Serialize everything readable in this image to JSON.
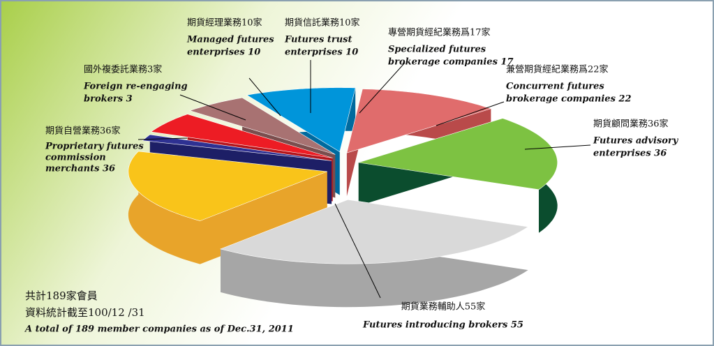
{
  "chart_data": {
    "type": "pie",
    "values": [
      55,
      36,
      3,
      10,
      10,
      17,
      22,
      36
    ],
    "colors": [
      "#d9d9d9",
      "#f9c41a",
      "#2e3192",
      "#ed1c24",
      "#a87272",
      "#0095da",
      "#e06c6c",
      "#7dc242"
    ],
    "side_colors": [
      "#a6a6a6",
      "#e8a42a",
      "#1d1f66",
      "#b5151b",
      "#7a4e4e",
      "#006a9e",
      "#b94a4a",
      "#0b4d2e"
    ],
    "labels": [
      [
        "期貨業務輔助人55家",
        "Futures introducing brokers 55"
      ],
      [
        "期貨自營業務36家",
        "Proprietary futures",
        "commission",
        "merchants 36"
      ],
      [
        "國外複委託業務3家",
        "Foreign re-engaging",
        "brokers 3"
      ],
      [
        "期貨經理業務10家",
        "Managed futures",
        "enterprises  10"
      ],
      [
        "期貨信託業務10家",
        "Futures trust",
        "enterprises 10"
      ],
      [
        "專營期貨經紀業務爲17家",
        "Specialized futures",
        "brokerage companies 17"
      ],
      [
        "兼營期貨經紀業務爲22家",
        "Concurrent futures",
        "brokerage companies 22"
      ],
      [
        "期貨顧問業務36家",
        "Futures advisory",
        "enterprises  36"
      ]
    ],
    "footer": [
      "共計189家會員",
      "資料統計截至100/12 /31",
      "A total of 189 member companies as of Dec.31, 2011"
    ]
  }
}
